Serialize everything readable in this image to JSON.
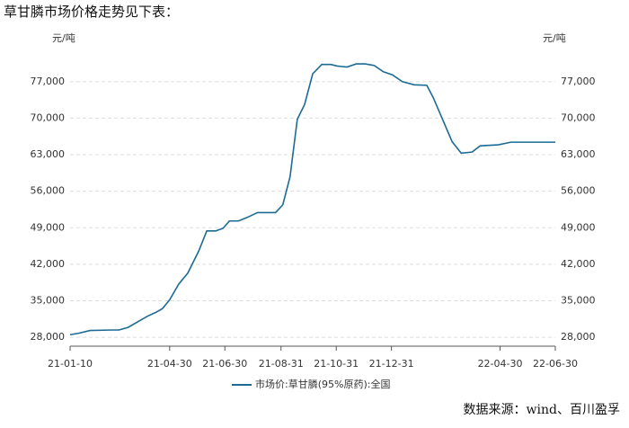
{
  "chart_data": {
    "type": "line",
    "title": "草甘膦市场价格走势见下表：",
    "y_unit": "元/吨",
    "source": "数据来源：wind、百川盈孚",
    "x": [
      "21-01-10",
      "21-01-20",
      "21-02-01",
      "21-02-25",
      "21-03-05",
      "21-03-15",
      "21-03-25",
      "21-04-05",
      "21-04-15",
      "21-04-22",
      "21-04-30",
      "21-05-10",
      "21-05-20",
      "21-06-01",
      "21-06-10",
      "21-06-20",
      "21-06-28",
      "21-07-05",
      "21-07-15",
      "21-07-25",
      "21-08-05",
      "21-08-25",
      "21-09-02",
      "21-09-10",
      "21-09-18",
      "21-09-26",
      "21-10-05",
      "21-10-15",
      "21-10-25",
      "21-11-01",
      "21-11-12",
      "21-11-22",
      "21-12-02",
      "21-12-12",
      "21-12-22",
      "22-01-01",
      "22-01-12",
      "22-01-25",
      "22-02-08",
      "22-02-15",
      "22-03-08",
      "22-03-18",
      "22-03-30",
      "22-04-08",
      "22-04-28",
      "22-05-12",
      "22-06-30"
    ],
    "series": [
      {
        "name": "市场价:草甘膦(95%原药):全国",
        "color": "#1c6b93",
        "values": [
          28500,
          28800,
          29300,
          29400,
          29400,
          29900,
          30900,
          32000,
          32800,
          33500,
          35200,
          38200,
          40300,
          44500,
          48400,
          48400,
          48900,
          50300,
          50300,
          51000,
          51900,
          51900,
          53400,
          58800,
          69800,
          72600,
          78500,
          80300,
          80300,
          80000,
          79800,
          80400,
          80400,
          80100,
          78900,
          78300,
          77000,
          76400,
          76300,
          74000,
          65500,
          63300,
          63500,
          64700,
          64900,
          65400,
          65400
        ]
      }
    ],
    "xlim": [
      "21-01-10",
      "22-06-30"
    ],
    "xticks": [
      "21-01-10",
      "21-04-30",
      "21-06-30",
      "21-08-31",
      "21-10-31",
      "21-12-31",
      "22-04-30",
      "22-06-30"
    ],
    "ylim": [
      26300,
      83000
    ],
    "yticks": [
      {
        "value": 28000,
        "label": "28,000"
      },
      {
        "value": 35000,
        "label": "35,000"
      },
      {
        "value": 42000,
        "label": "42,000"
      },
      {
        "value": 49000,
        "label": "49,000"
      },
      {
        "value": 56000,
        "label": "56,000"
      },
      {
        "value": 63000,
        "label": "63,000"
      },
      {
        "value": 70000,
        "label": "70,000"
      },
      {
        "value": 77000,
        "label": "77,000"
      }
    ],
    "grid": true
  }
}
